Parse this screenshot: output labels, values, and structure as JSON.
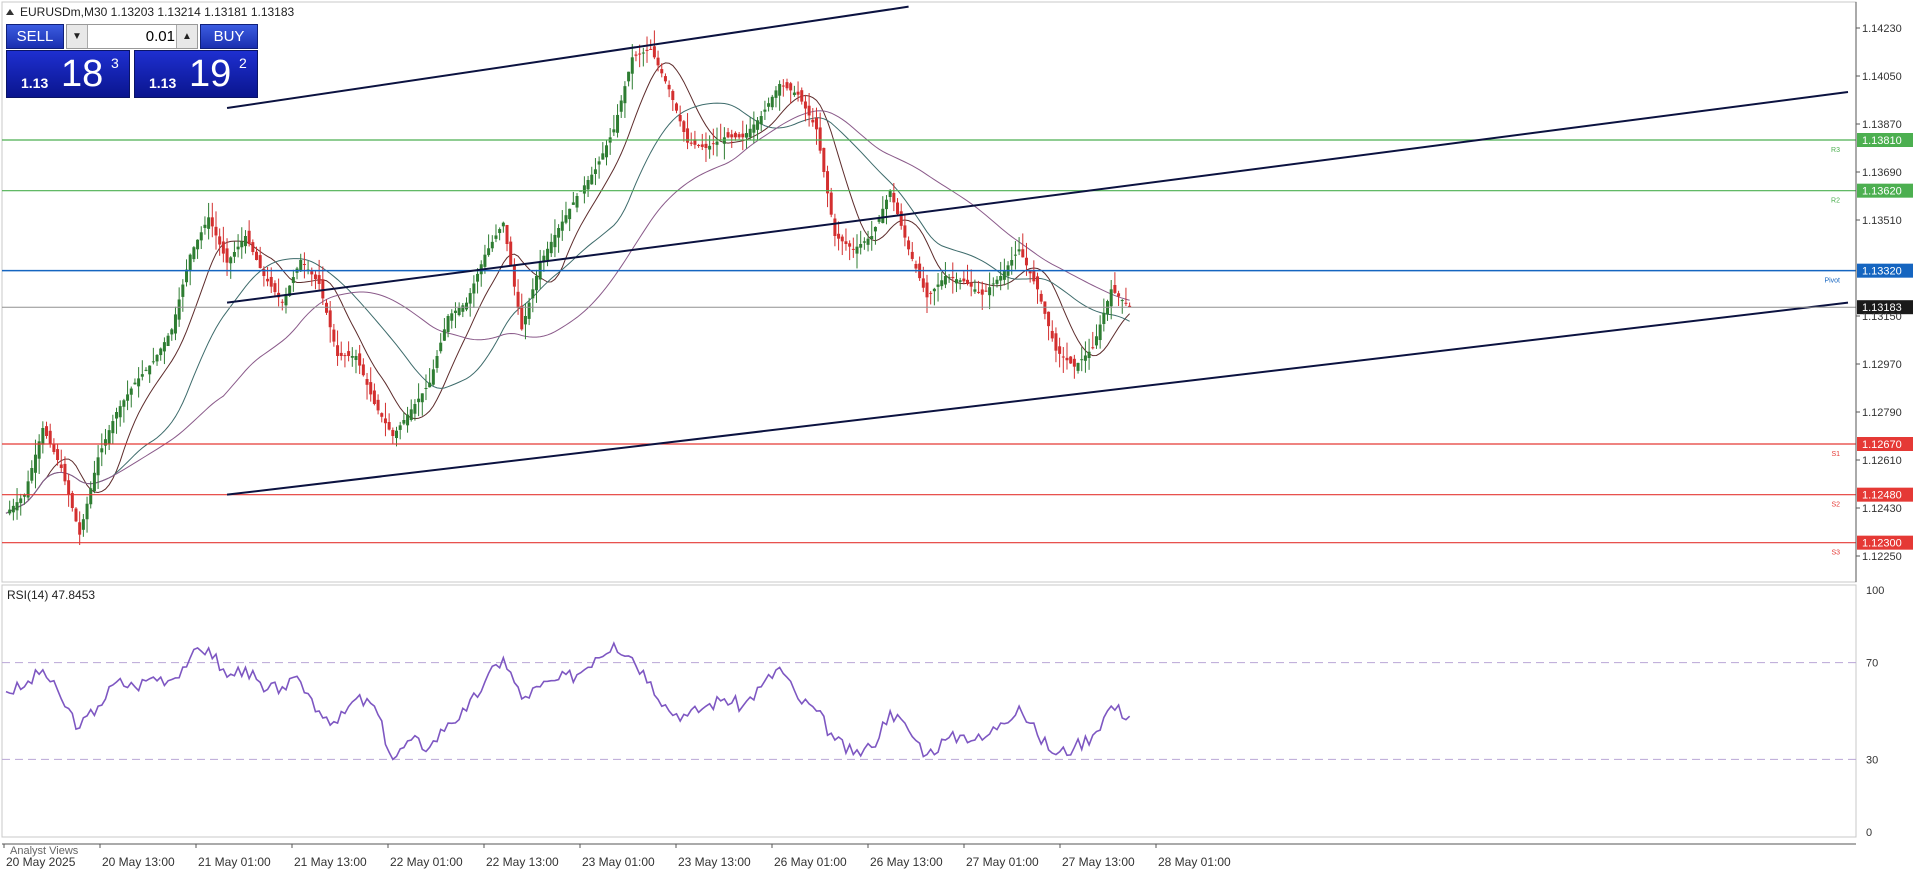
{
  "symbol_header": "EURUSDm,M30  1.13203 1.13214 1.13181 1.13183",
  "trade_panel": {
    "sell_label": "SELL",
    "buy_label": "BUY",
    "lot_value": "0.01",
    "sell_small": "1.13",
    "sell_big": "18",
    "sell_sup": "3",
    "buy_small": "1.13",
    "buy_big": "19",
    "buy_sup": "2"
  },
  "colors": {
    "candle_bull": "#2e7d32",
    "candle_bear": "#d32f2f",
    "resistance": "#4caf50",
    "support": "#e53935",
    "pivot": "#1565c0",
    "trendline": "#0b1240",
    "rsi_line": "#7e57c2"
  },
  "chart_data": [
    {
      "type": "candlestick",
      "symbol": "EURUSDm",
      "timeframe": "M30",
      "ylim": [
        1.1216,
        1.1432
      ],
      "ticks": [
        "1.14230",
        "1.14050",
        "1.13870",
        "1.13690",
        "1.13510",
        "1.13150",
        "1.12970",
        "1.12790",
        "1.12610",
        "1.12430",
        "1.12250"
      ],
      "x_labels": [
        "20 May 2025",
        "20 May 13:00",
        "21 May 01:00",
        "21 May 13:00",
        "22 May 01:00",
        "22 May 13:00",
        "23 May 01:00",
        "23 May 13:00",
        "26 May 01:00",
        "26 May 13:00",
        "27 May 01:00",
        "27 May 13:00",
        "28 May 01:00"
      ],
      "current_price": 1.13183,
      "current_price_label": "1.13183",
      "levels": [
        {
          "name": "R3",
          "value": 1.1381,
          "label": "1.13810",
          "kind": "resistance"
        },
        {
          "name": "R2",
          "value": 1.1362,
          "label": "1.13620",
          "kind": "resistance"
        },
        {
          "name": "Pivot",
          "value": 1.1332,
          "label": "1.13320",
          "kind": "pivot"
        },
        {
          "name": "S1",
          "value": 1.1267,
          "label": "1.12670",
          "kind": "support"
        },
        {
          "name": "S2",
          "value": 1.1248,
          "label": "1.12480",
          "kind": "support"
        },
        {
          "name": "S3",
          "value": 1.123,
          "label": "1.12300",
          "kind": "support"
        }
      ],
      "trendlines": [
        {
          "x": [
            12,
            49
          ],
          "y": [
            1.1393,
            1.1431
          ]
        },
        {
          "x": [
            12,
            100
          ],
          "y": [
            1.132,
            1.1399
          ]
        },
        {
          "x": [
            12,
            100
          ],
          "y": [
            1.1248,
            1.132
          ]
        }
      ],
      "ohlc_anchors": [
        {
          "x": 0,
          "y": 1.1241
        },
        {
          "x": 1,
          "y": 1.1248
        },
        {
          "x": 2,
          "y": 1.1273
        },
        {
          "x": 3,
          "y": 1.1258
        },
        {
          "x": 4,
          "y": 1.1233
        },
        {
          "x": 5,
          "y": 1.1262
        },
        {
          "x": 6,
          "y": 1.1279
        },
        {
          "x": 7,
          "y": 1.129
        },
        {
          "x": 8,
          "y": 1.1298
        },
        {
          "x": 9,
          "y": 1.131
        },
        {
          "x": 10,
          "y": 1.1338
        },
        {
          "x": 11,
          "y": 1.1352
        },
        {
          "x": 12,
          "y": 1.1335
        },
        {
          "x": 13,
          "y": 1.1345
        },
        {
          "x": 14,
          "y": 1.133
        },
        {
          "x": 15,
          "y": 1.132
        },
        {
          "x": 16,
          "y": 1.1336
        },
        {
          "x": 17,
          "y": 1.1327
        },
        {
          "x": 18,
          "y": 1.13
        },
        {
          "x": 19,
          "y": 1.13
        },
        {
          "x": 20,
          "y": 1.1282
        },
        {
          "x": 21,
          "y": 1.127
        },
        {
          "x": 22,
          "y": 1.128
        },
        {
          "x": 23,
          "y": 1.129
        },
        {
          "x": 24,
          "y": 1.1315
        },
        {
          "x": 25,
          "y": 1.132
        },
        {
          "x": 26,
          "y": 1.1338
        },
        {
          "x": 27,
          "y": 1.135
        },
        {
          "x": 28,
          "y": 1.131
        },
        {
          "x": 29,
          "y": 1.1335
        },
        {
          "x": 30,
          "y": 1.1348
        },
        {
          "x": 31,
          "y": 1.136
        },
        {
          "x": 32,
          "y": 1.137
        },
        {
          "x": 33,
          "y": 1.1385
        },
        {
          "x": 34,
          "y": 1.1412
        },
        {
          "x": 35,
          "y": 1.1415
        },
        {
          "x": 36,
          "y": 1.14
        },
        {
          "x": 37,
          "y": 1.138
        },
        {
          "x": 38,
          "y": 1.1378
        },
        {
          "x": 39,
          "y": 1.1382
        },
        {
          "x": 40,
          "y": 1.1382
        },
        {
          "x": 41,
          "y": 1.139
        },
        {
          "x": 42,
          "y": 1.1402
        },
        {
          "x": 43,
          "y": 1.1398
        },
        {
          "x": 44,
          "y": 1.1385
        },
        {
          "x": 45,
          "y": 1.1345
        },
        {
          "x": 46,
          "y": 1.134
        },
        {
          "x": 47,
          "y": 1.1345
        },
        {
          "x": 48,
          "y": 1.1362
        },
        {
          "x": 49,
          "y": 1.134
        },
        {
          "x": 50,
          "y": 1.1322
        },
        {
          "x": 51,
          "y": 1.133
        },
        {
          "x": 52,
          "y": 1.1328
        },
        {
          "x": 53,
          "y": 1.1323
        },
        {
          "x": 54,
          "y": 1.133
        },
        {
          "x": 55,
          "y": 1.134
        },
        {
          "x": 56,
          "y": 1.1325
        },
        {
          "x": 57,
          "y": 1.1302
        },
        {
          "x": 58,
          "y": 1.1296
        },
        {
          "x": 59,
          "y": 1.1303
        },
        {
          "x": 60,
          "y": 1.1325
        },
        {
          "x": 61,
          "y": 1.13183
        }
      ]
    },
    {
      "type": "line",
      "title": "RSI(14) 47.8453",
      "ylim": [
        0,
        100
      ],
      "ticks": [
        "100",
        "70",
        "30",
        "0"
      ],
      "levels": [
        70,
        30
      ],
      "values": [
        {
          "x": 0,
          "y": 58
        },
        {
          "x": 1,
          "y": 60
        },
        {
          "x": 2,
          "y": 67
        },
        {
          "x": 3,
          "y": 55
        },
        {
          "x": 4,
          "y": 43
        },
        {
          "x": 5,
          "y": 52
        },
        {
          "x": 6,
          "y": 62
        },
        {
          "x": 7,
          "y": 60
        },
        {
          "x": 8,
          "y": 64
        },
        {
          "x": 9,
          "y": 63
        },
        {
          "x": 10,
          "y": 72
        },
        {
          "x": 11,
          "y": 76
        },
        {
          "x": 12,
          "y": 64
        },
        {
          "x": 13,
          "y": 68
        },
        {
          "x": 14,
          "y": 58
        },
        {
          "x": 15,
          "y": 60
        },
        {
          "x": 16,
          "y": 62
        },
        {
          "x": 17,
          "y": 50
        },
        {
          "x": 18,
          "y": 45
        },
        {
          "x": 19,
          "y": 55
        },
        {
          "x": 20,
          "y": 52
        },
        {
          "x": 21,
          "y": 30
        },
        {
          "x": 22,
          "y": 38
        },
        {
          "x": 23,
          "y": 35
        },
        {
          "x": 24,
          "y": 45
        },
        {
          "x": 25,
          "y": 50
        },
        {
          "x": 26,
          "y": 62
        },
        {
          "x": 27,
          "y": 72
        },
        {
          "x": 28,
          "y": 55
        },
        {
          "x": 29,
          "y": 60
        },
        {
          "x": 30,
          "y": 63
        },
        {
          "x": 31,
          "y": 65
        },
        {
          "x": 32,
          "y": 72
        },
        {
          "x": 33,
          "y": 78
        },
        {
          "x": 34,
          "y": 72
        },
        {
          "x": 35,
          "y": 62
        },
        {
          "x": 36,
          "y": 50
        },
        {
          "x": 37,
          "y": 48
        },
        {
          "x": 38,
          "y": 52
        },
        {
          "x": 39,
          "y": 55
        },
        {
          "x": 40,
          "y": 52
        },
        {
          "x": 41,
          "y": 60
        },
        {
          "x": 42,
          "y": 68
        },
        {
          "x": 43,
          "y": 55
        },
        {
          "x": 44,
          "y": 50
        },
        {
          "x": 45,
          "y": 38
        },
        {
          "x": 46,
          "y": 32
        },
        {
          "x": 47,
          "y": 35
        },
        {
          "x": 48,
          "y": 50
        },
        {
          "x": 49,
          "y": 42
        },
        {
          "x": 50,
          "y": 32
        },
        {
          "x": 51,
          "y": 38
        },
        {
          "x": 52,
          "y": 40
        },
        {
          "x": 53,
          "y": 38
        },
        {
          "x": 54,
          "y": 45
        },
        {
          "x": 55,
          "y": 52
        },
        {
          "x": 56,
          "y": 40
        },
        {
          "x": 57,
          "y": 32
        },
        {
          "x": 58,
          "y": 35
        },
        {
          "x": 59,
          "y": 40
        },
        {
          "x": 60,
          "y": 52
        },
        {
          "x": 61,
          "y": 47.8453
        }
      ]
    }
  ],
  "bottom_tab": "Analyst Views"
}
